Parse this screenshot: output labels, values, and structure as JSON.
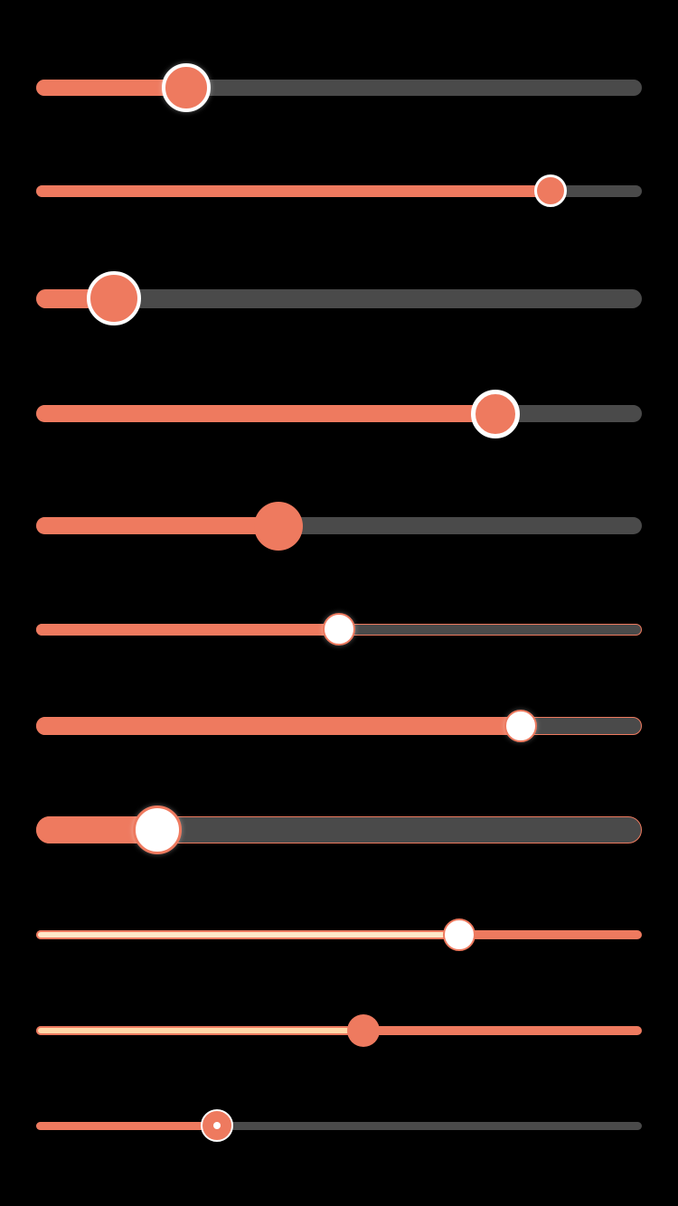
{
  "theme": {
    "background": "#000000",
    "accent": "#ee7a5f",
    "track_inactive": "#4a4a4a",
    "thumb_white": "#ffffff",
    "fill_light": "#ffe8c8"
  },
  "sliders": [
    {
      "id": "s1",
      "value": 0.248
    },
    {
      "id": "s2",
      "value": 0.849
    },
    {
      "id": "s3",
      "value": 0.128
    },
    {
      "id": "s4",
      "value": 0.758
    },
    {
      "id": "s5",
      "value": 0.4
    },
    {
      "id": "s6",
      "value": 0.5
    },
    {
      "id": "s7",
      "value": 0.8
    },
    {
      "id": "s8",
      "value": 0.2
    },
    {
      "id": "s9",
      "value": 0.699
    },
    {
      "id": "s10",
      "value": 0.54
    },
    {
      "id": "s11",
      "value": 0.299
    }
  ]
}
